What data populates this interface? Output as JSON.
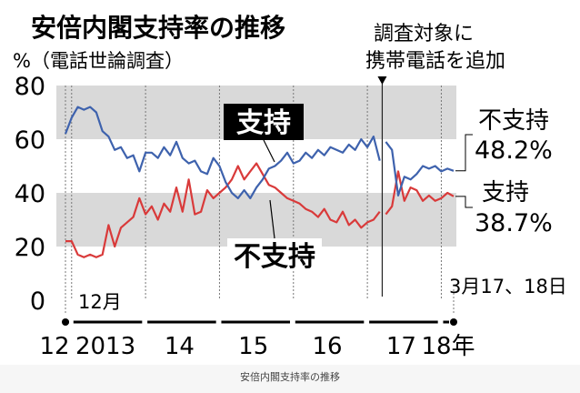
{
  "colors": {
    "support": "#d93a3a",
    "disapprove": "#3e62ad",
    "band": "#d9d9d9",
    "axis": "#000000"
  },
  "caption": "安倍内閣支持率の推移",
  "chart_data": {
    "type": "line",
    "title": "安倍内閣支持率の推移",
    "ylabel": "%（電話世論調査）",
    "ylim": [
      0,
      80
    ],
    "yticks": [
      0,
      20,
      40,
      60,
      80
    ],
    "shaded_bands": [
      [
        20,
        40
      ],
      [
        60,
        80
      ]
    ],
    "x_axis_labels": [
      "12",
      "2013",
      "14",
      "15",
      "16",
      "17",
      "18年"
    ],
    "x_axis_years": [
      2012,
      2013,
      2014,
      2015,
      2016,
      2017,
      2018
    ],
    "x_start_label": "12月",
    "x_end_label": "3月17、18日",
    "method_change_note": [
      "調査対象に",
      "携帯電話を追加"
    ],
    "method_change_date": "2017-04",
    "series": [
      {
        "name": "支持",
        "role": "support",
        "label_inline": "支持",
        "label_end": "支持",
        "last_value_label": "38.7%",
        "segments": [
          [
            [
              "2012-12",
              22
            ],
            [
              "2013-01",
              22
            ],
            [
              "2013-02",
              17
            ],
            [
              "2013-03",
              16
            ],
            [
              "2013-04",
              17
            ],
            [
              "2013-05",
              16
            ],
            [
              "2013-06",
              17
            ],
            [
              "2013-07",
              28
            ],
            [
              "2013-08",
              20
            ],
            [
              "2013-09",
              27
            ],
            [
              "2013-10",
              29
            ],
            [
              "2013-11",
              31
            ],
            [
              "2013-12",
              38
            ],
            [
              "2014-01",
              32
            ],
            [
              "2014-02",
              35
            ],
            [
              "2014-03",
              30
            ],
            [
              "2014-04",
              36
            ],
            [
              "2014-05",
              33
            ],
            [
              "2014-06",
              42
            ],
            [
              "2014-07",
              33
            ],
            [
              "2014-08",
              45
            ],
            [
              "2014-09",
              32
            ],
            [
              "2014-10",
              33
            ],
            [
              "2014-11",
              41
            ],
            [
              "2014-12",
              38
            ],
            [
              "2015-01",
              40
            ],
            [
              "2015-02",
              42
            ],
            [
              "2015-03",
              45
            ],
            [
              "2015-04",
              50
            ],
            [
              "2015-05",
              45
            ],
            [
              "2015-06",
              48
            ],
            [
              "2015-07",
              51
            ],
            [
              "2015-08",
              47
            ],
            [
              "2015-09",
              43
            ],
            [
              "2015-10",
              42
            ],
            [
              "2015-11",
              40
            ],
            [
              "2015-12",
              38
            ],
            [
              "2016-01",
              37
            ],
            [
              "2016-02",
              36
            ],
            [
              "2016-03",
              34
            ],
            [
              "2016-04",
              33
            ],
            [
              "2016-05",
              31
            ],
            [
              "2016-06",
              34
            ],
            [
              "2016-07",
              30
            ],
            [
              "2016-08",
              29
            ],
            [
              "2016-09",
              33
            ],
            [
              "2016-10",
              28
            ],
            [
              "2016-11",
              30
            ],
            [
              "2016-12",
              27
            ],
            [
              "2017-01",
              29
            ],
            [
              "2017-02",
              30
            ],
            [
              "2017-03",
              33
            ]
          ],
          [
            [
              "2017-04",
              32
            ],
            [
              "2017-05",
              35
            ],
            [
              "2017-06",
              48
            ],
            [
              "2017-07",
              37
            ],
            [
              "2017-08",
              42
            ],
            [
              "2017-09",
              41
            ],
            [
              "2017-10",
              37
            ],
            [
              "2017-11",
              39
            ],
            [
              "2017-12",
              37
            ],
            [
              "2018-01",
              38
            ],
            [
              "2018-02",
              40
            ],
            [
              "2018-03",
              38.7
            ]
          ]
        ]
      },
      {
        "name": "不支持",
        "role": "disapprove",
        "label_inline": "不支持",
        "label_end": "不支持",
        "last_value_label": "48.2%",
        "segments": [
          [
            [
              "2012-12",
              62
            ],
            [
              "2013-01",
              68
            ],
            [
              "2013-02",
              72
            ],
            [
              "2013-03",
              71
            ],
            [
              "2013-04",
              72
            ],
            [
              "2013-05",
              70
            ],
            [
              "2013-06",
              63
            ],
            [
              "2013-07",
              61
            ],
            [
              "2013-08",
              56
            ],
            [
              "2013-09",
              57
            ],
            [
              "2013-10",
              53
            ],
            [
              "2013-11",
              54
            ],
            [
              "2013-12",
              48
            ],
            [
              "2014-01",
              55
            ],
            [
              "2014-02",
              55
            ],
            [
              "2014-03",
              53
            ],
            [
              "2014-04",
              57
            ],
            [
              "2014-05",
              54
            ],
            [
              "2014-06",
              59
            ],
            [
              "2014-07",
              53
            ],
            [
              "2014-08",
              51
            ],
            [
              "2014-09",
              52
            ],
            [
              "2014-10",
              48
            ],
            [
              "2014-11",
              47
            ],
            [
              "2014-12",
              53
            ],
            [
              "2015-01",
              50
            ],
            [
              "2015-02",
              44
            ],
            [
              "2015-03",
              40
            ],
            [
              "2015-04",
              38
            ],
            [
              "2015-05",
              41
            ],
            [
              "2015-06",
              38
            ],
            [
              "2015-07",
              42
            ],
            [
              "2015-08",
              45
            ],
            [
              "2015-09",
              49
            ],
            [
              "2015-10",
              50
            ],
            [
              "2015-11",
              52
            ],
            [
              "2015-12",
              55
            ],
            [
              "2016-01",
              51
            ],
            [
              "2016-02",
              52
            ],
            [
              "2016-03",
              55
            ],
            [
              "2016-04",
              53
            ],
            [
              "2016-05",
              56
            ],
            [
              "2016-06",
              54
            ],
            [
              "2016-07",
              57
            ],
            [
              "2016-08",
              56
            ],
            [
              "2016-09",
              55
            ],
            [
              "2016-10",
              58
            ],
            [
              "2016-11",
              56
            ],
            [
              "2016-12",
              60
            ],
            [
              "2017-01",
              57
            ],
            [
              "2017-02",
              61
            ],
            [
              "2017-03",
              52
            ]
          ],
          [
            [
              "2017-04",
              59
            ],
            [
              "2017-05",
              56
            ],
            [
              "2017-06",
              39
            ],
            [
              "2017-07",
              46
            ],
            [
              "2017-08",
              45
            ],
            [
              "2017-09",
              47
            ],
            [
              "2017-10",
              50
            ],
            [
              "2017-11",
              49
            ],
            [
              "2017-12",
              50
            ],
            [
              "2018-01",
              48
            ],
            [
              "2018-02",
              49
            ],
            [
              "2018-03",
              48.2
            ]
          ]
        ]
      }
    ]
  }
}
